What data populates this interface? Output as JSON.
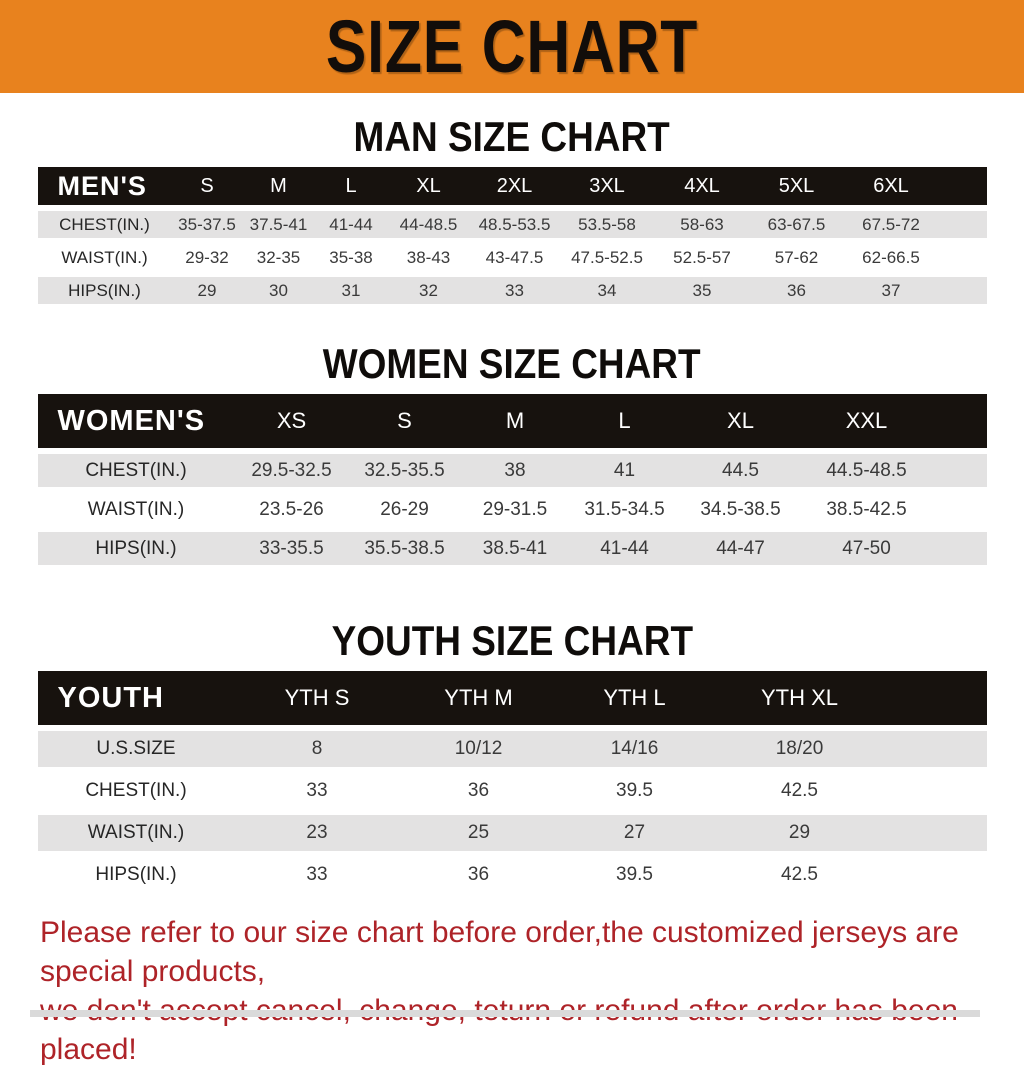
{
  "banner": {
    "title": "SIZE CHART",
    "bg_color": "#e8821e",
    "text_color": "#120d0a"
  },
  "sections": [
    {
      "title": "MAN SIZE CHART",
      "table": {
        "header_label": "MEN'S",
        "sizes": [
          "S",
          "M",
          "L",
          "XL",
          "2XL",
          "3XL",
          "4XL",
          "5XL",
          "6XL"
        ],
        "rows": [
          {
            "label": "CHEST(IN.)",
            "values": [
              "35-37.5",
              "37.5-41",
              "41-44",
              "44-48.5",
              "48.5-53.5",
              "53.5-58",
              "58-63",
              "63-67.5",
              "67.5-72"
            ]
          },
          {
            "label": "WAIST(IN.)",
            "values": [
              "29-32",
              "32-35",
              "35-38",
              "38-43",
              "43-47.5",
              "47.5-52.5",
              "52.5-57",
              "57-62",
              "62-66.5"
            ]
          },
          {
            "label": "HIPS(IN.)",
            "values": [
              "29",
              "30",
              "31",
              "32",
              "33",
              "34",
              "35",
              "36",
              "37"
            ]
          }
        ]
      }
    },
    {
      "title": "WOMEN SIZE CHART",
      "table": {
        "header_label": "WOMEN'S",
        "sizes": [
          "XS",
          "S",
          "M",
          "L",
          "XL",
          "XXL"
        ],
        "rows": [
          {
            "label": "CHEST(IN.)",
            "values": [
              "29.5-32.5",
              "32.5-35.5",
              "38",
              "41",
              "44.5",
              "44.5-48.5"
            ]
          },
          {
            "label": "WAIST(IN.)",
            "values": [
              "23.5-26",
              "26-29",
              "29-31.5",
              "31.5-34.5",
              "34.5-38.5",
              "38.5-42.5"
            ]
          },
          {
            "label": "HIPS(IN.)",
            "values": [
              "33-35.5",
              "35.5-38.5",
              "38.5-41",
              "41-44",
              "44-47",
              "47-50"
            ]
          }
        ]
      }
    },
    {
      "title": "YOUTH SIZE CHART",
      "table": {
        "header_label": "YOUTH",
        "sizes": [
          "YTH S",
          "YTH M",
          "YTH L",
          "YTH XL"
        ],
        "rows": [
          {
            "label": "U.S.SIZE",
            "values": [
              "8",
              "10/12",
              "14/16",
              "18/20"
            ]
          },
          {
            "label": "CHEST(IN.)",
            "values": [
              "33",
              "36",
              "39.5",
              "42.5"
            ]
          },
          {
            "label": "WAIST(IN.)",
            "values": [
              "23",
              "25",
              "27",
              "29"
            ]
          },
          {
            "label": "HIPS(IN.)",
            "values": [
              "33",
              "36",
              "39.5",
              "42.5"
            ]
          }
        ]
      }
    }
  ],
  "footer": {
    "line1": "Please refer to our size chart before order,the customized jerseys are special products,",
    "line2": "we don't accept cancel, change, teturn or refund after order has been placed!",
    "text_color": "#ae2328"
  }
}
